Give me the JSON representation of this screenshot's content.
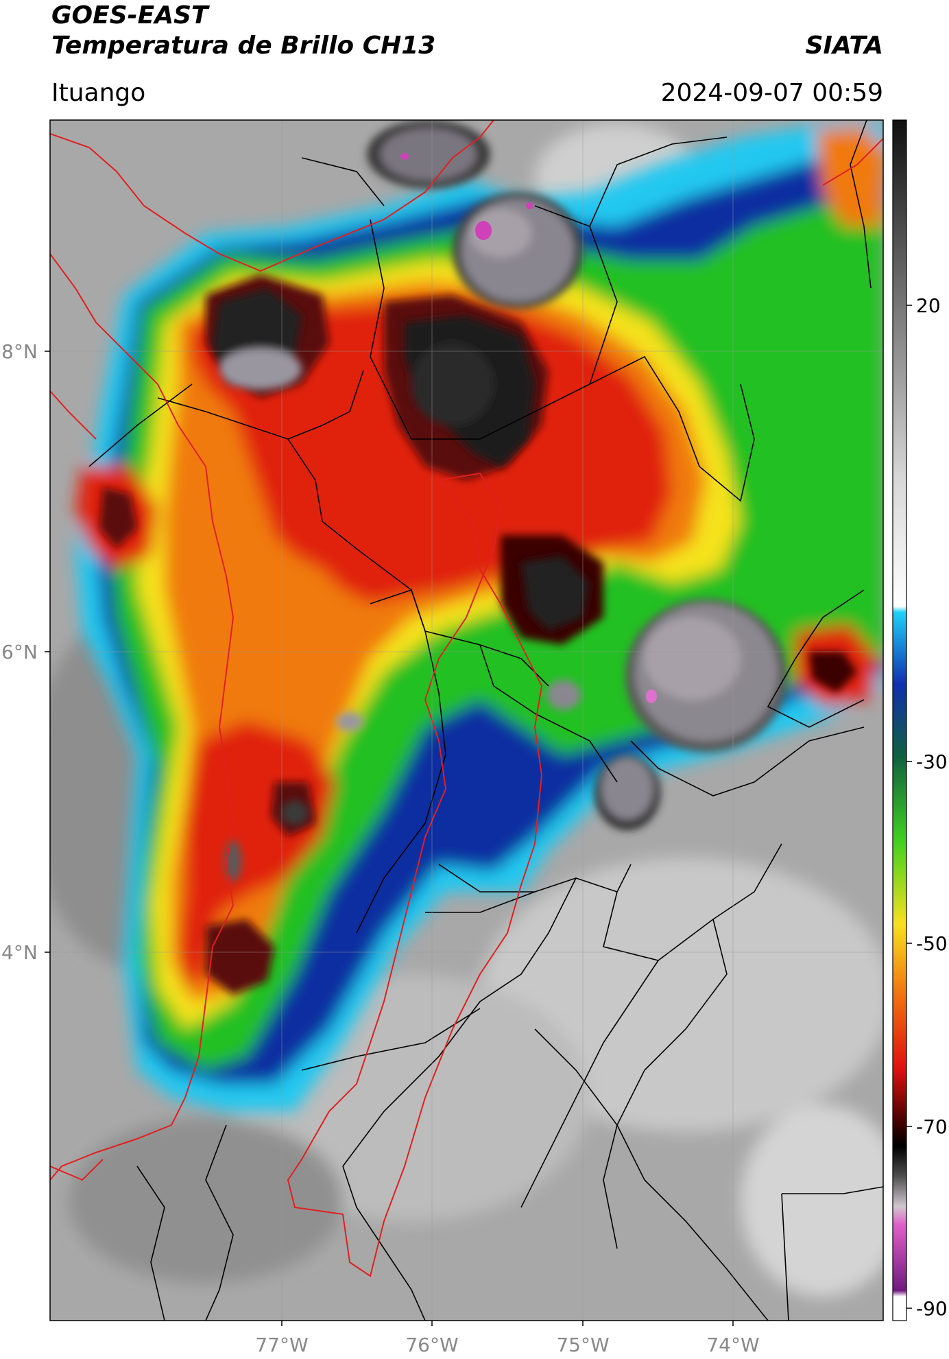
{
  "header": {
    "satellite": "GOES-EAST",
    "product": "Temperatura de Brillo CH13",
    "organization": "SIATA",
    "region": "Ituango",
    "timestamp": "2024-09-07 00:59"
  },
  "map": {
    "lat_labels": [
      "8°N",
      "6°N",
      "4°N"
    ],
    "lon_labels": [
      "77°W",
      "76°W",
      "75°W",
      "74°W"
    ]
  },
  "colorbar": {
    "ticks": [
      "20",
      "-30",
      "-50",
      "-70",
      "-90"
    ],
    "colors": {
      "warm_gray": "#9a9a9a",
      "cyan": "#22c8f0",
      "blue": "#0a2fa0",
      "green": "#22c020",
      "yellow": "#f5e21a",
      "orange": "#f07a10",
      "red": "#e02010",
      "dark_red": "#3a0505",
      "gray_top": "#c8c0c8",
      "magenta": "#e040c0",
      "purple": "#701a80"
    }
  }
}
